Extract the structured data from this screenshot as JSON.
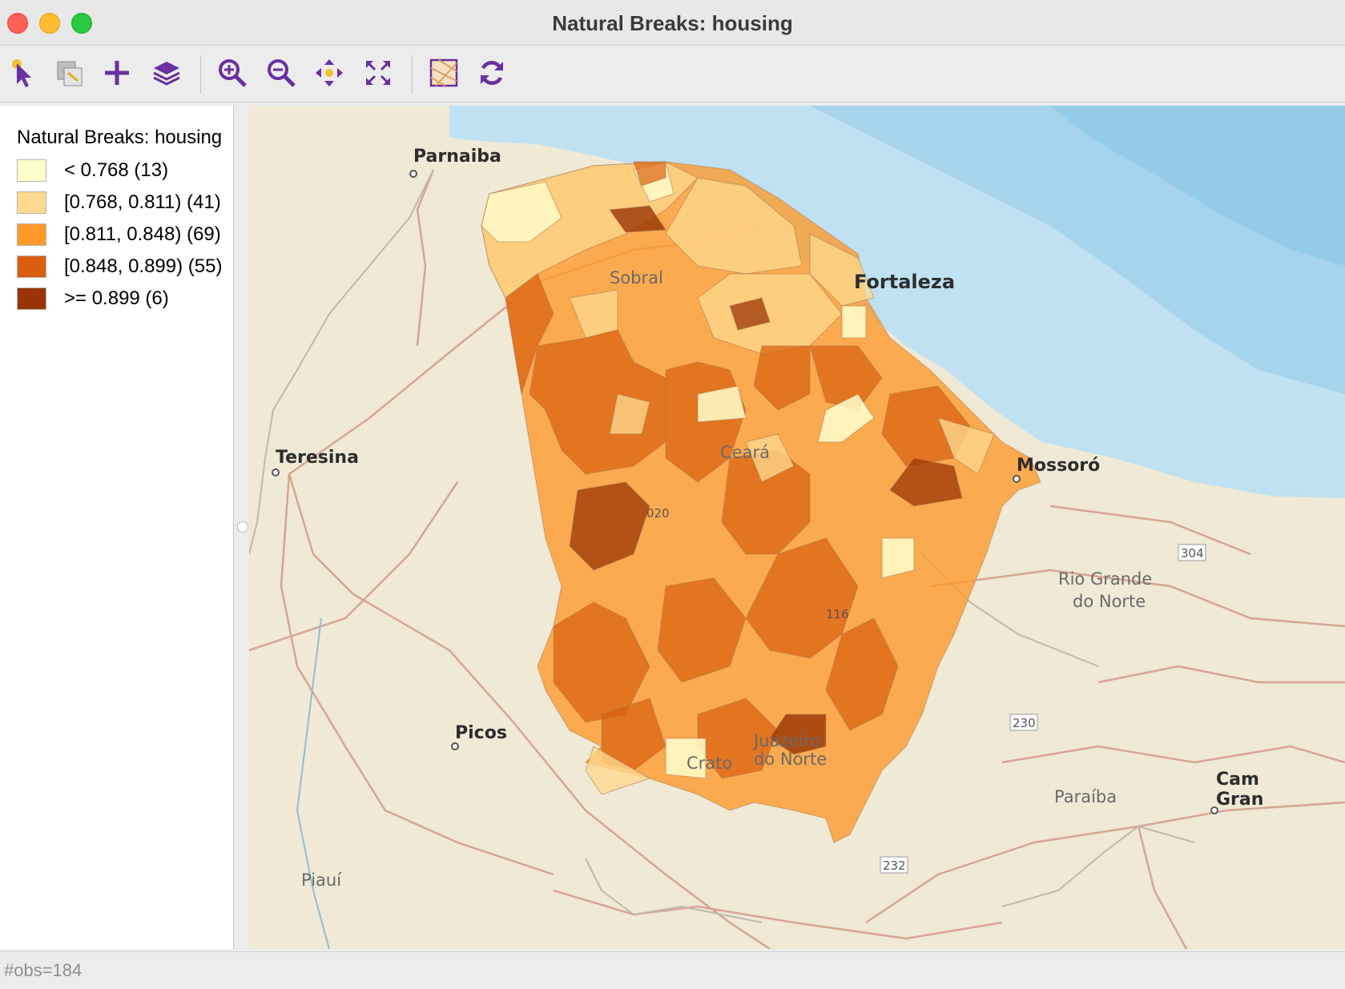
{
  "window": {
    "title": "Natural Breaks: housing"
  },
  "toolbar": [
    {
      "name": "select-tool-icon"
    },
    {
      "name": "selection-shape-icon"
    },
    {
      "name": "add-icon"
    },
    {
      "name": "layers-icon"
    },
    {
      "name": "zoom-in-icon"
    },
    {
      "name": "zoom-out-icon"
    },
    {
      "name": "pan-icon"
    },
    {
      "name": "full-extent-icon"
    },
    {
      "name": "basemap-icon"
    },
    {
      "name": "refresh-icon"
    }
  ],
  "legend": {
    "title": "Natural Breaks: housing",
    "items": [
      {
        "label": "< 0.768 (13)",
        "color": "#ffffcc"
      },
      {
        "label": "[0.768, 0.811) (41)",
        "color": "#fed98e"
      },
      {
        "label": "[0.811, 0.848) (69)",
        "color": "#fe9929"
      },
      {
        "label": "[0.848, 0.899) (55)",
        "color": "#d95f0e"
      },
      {
        "label": ">= 0.899 (6)",
        "color": "#993404"
      }
    ]
  },
  "map": {
    "places": {
      "parnaiba": "Parnaiba",
      "sobral": "Sobral",
      "fortaleza": "Fortaleza",
      "teresina": "Teresina",
      "ceara": "Ceará",
      "mossoro": "Mossoró",
      "rio_grande_1": "Rio Grande",
      "rio_grande_2": "do Norte",
      "picos": "Picos",
      "juazeiro_1": "Juazeiro",
      "juazeiro_2": "do Norte",
      "crato": "Crato",
      "paraiba": "Paraíba",
      "cam_1": "Cam",
      "cam_2": "Gran",
      "piaui": "Piauí"
    },
    "shields": {
      "s304": "304",
      "s020": "020",
      "s116": "116",
      "s230": "230",
      "s232": "232"
    }
  },
  "status": {
    "text": "#obs=184"
  }
}
